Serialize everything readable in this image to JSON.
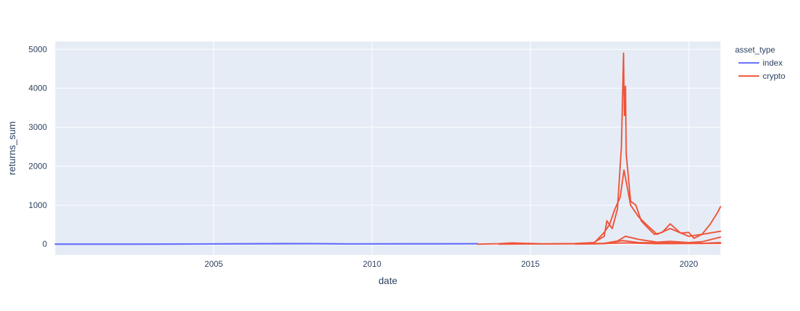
{
  "chart_data": {
    "type": "line",
    "xlabel": "date",
    "ylabel": "returns_sum",
    "xlim": [
      "2000-01-01",
      "2021-01-01"
    ],
    "ylim": [
      -280,
      5200
    ],
    "x_ticks": [
      "2005",
      "2010",
      "2015",
      "2020"
    ],
    "y_ticks": [
      0,
      1000,
      2000,
      3000,
      4000,
      5000
    ],
    "y_tick_labels": [
      "0",
      "1000",
      "2000",
      "3000",
      "4000",
      "5000"
    ],
    "grid": true,
    "legend": {
      "title": "asset_type",
      "placement": "right",
      "items": [
        {
          "label": "index",
          "color": "#636efa"
        },
        {
          "label": "crypto",
          "color": "#ef553b"
        }
      ]
    },
    "series": [
      {
        "name": "index",
        "legend": "index",
        "color": "#636efa",
        "x": [
          "2000-01-01",
          "2002-01-01",
          "2004-01-01",
          "2006-01-01",
          "2007-06-01",
          "2008-06-01",
          "2009-03-01",
          "2011-01-01",
          "2013-05-01"
        ],
        "y": [
          0,
          0,
          2,
          10,
          14,
          12,
          4,
          8,
          10
        ]
      },
      {
        "name": "index",
        "legend": "",
        "color": "#636efa",
        "x": [
          "2000-01-01",
          "2003-01-01",
          "2006-01-01",
          "2008-01-01",
          "2010-01-01",
          "2013-05-01"
        ],
        "y": [
          0,
          1,
          5,
          9,
          5,
          7
        ]
      },
      {
        "name": "crypto",
        "legend": "crypto",
        "color": "#ef553b",
        "x": [
          "2013-05-01",
          "2014-01-01",
          "2014-06-01",
          "2015-06-01",
          "2016-06-01",
          "2017-01-01",
          "2017-05-01",
          "2017-06-01",
          "2017-08-01",
          "2017-10-01",
          "2017-11-15",
          "2017-12-10",
          "2017-12-20",
          "2018-01-01",
          "2018-01-10",
          "2018-02-01",
          "2018-03-01",
          "2018-05-01",
          "2018-07-01",
          "2018-09-01",
          "2018-12-01",
          "2019-03-01",
          "2019-06-01",
          "2019-08-01",
          "2019-10-01",
          "2020-01-01",
          "2020-03-01",
          "2020-06-01",
          "2020-09-01",
          "2020-12-01",
          "2021-01-01"
        ],
        "y": [
          0,
          10,
          30,
          5,
          15,
          40,
          200,
          600,
          400,
          900,
          2500,
          4900,
          3300,
          4050,
          2300,
          1800,
          1100,
          1000,
          600,
          450,
          250,
          300,
          520,
          400,
          280,
          300,
          150,
          250,
          500,
          820,
          960
        ]
      },
      {
        "name": "crypto",
        "legend": "",
        "color": "#ef553b",
        "x": [
          "2016-06-01",
          "2017-01-01",
          "2017-05-01",
          "2017-07-01",
          "2017-09-01",
          "2017-11-01",
          "2017-12-15",
          "2018-01-10",
          "2018-03-01",
          "2018-06-01",
          "2018-09-01",
          "2019-01-01",
          "2019-06-01",
          "2020-01-01",
          "2020-06-01",
          "2021-01-01"
        ],
        "y": [
          5,
          20,
          300,
          500,
          900,
          1200,
          1900,
          1600,
          1000,
          700,
          500,
          250,
          400,
          200,
          250,
          330
        ]
      },
      {
        "name": "crypto",
        "legend": "",
        "color": "#ef553b",
        "x": [
          "2016-06-01",
          "2017-05-01",
          "2017-10-01",
          "2018-01-01",
          "2018-06-01",
          "2019-01-01",
          "2019-06-01",
          "2020-01-01",
          "2020-06-01",
          "2021-01-01"
        ],
        "y": [
          3,
          20,
          80,
          200,
          120,
          50,
          70,
          40,
          60,
          180
        ]
      },
      {
        "name": "crypto",
        "legend": "",
        "color": "#ef553b",
        "x": [
          "2016-06-01",
          "2017-05-01",
          "2017-12-01",
          "2018-06-01",
          "2019-06-01",
          "2020-06-01",
          "2021-01-01"
        ],
        "y": [
          2,
          10,
          90,
          40,
          30,
          20,
          40
        ]
      },
      {
        "name": "crypto",
        "legend": "",
        "color": "#ef553b",
        "x": [
          "2014-01-01",
          "2015-01-01",
          "2016-01-01",
          "2017-01-01",
          "2018-01-01",
          "2019-01-01",
          "2020-01-01",
          "2021-01-01"
        ],
        "y": [
          0,
          3,
          5,
          8,
          30,
          10,
          15,
          20
        ]
      }
    ]
  }
}
